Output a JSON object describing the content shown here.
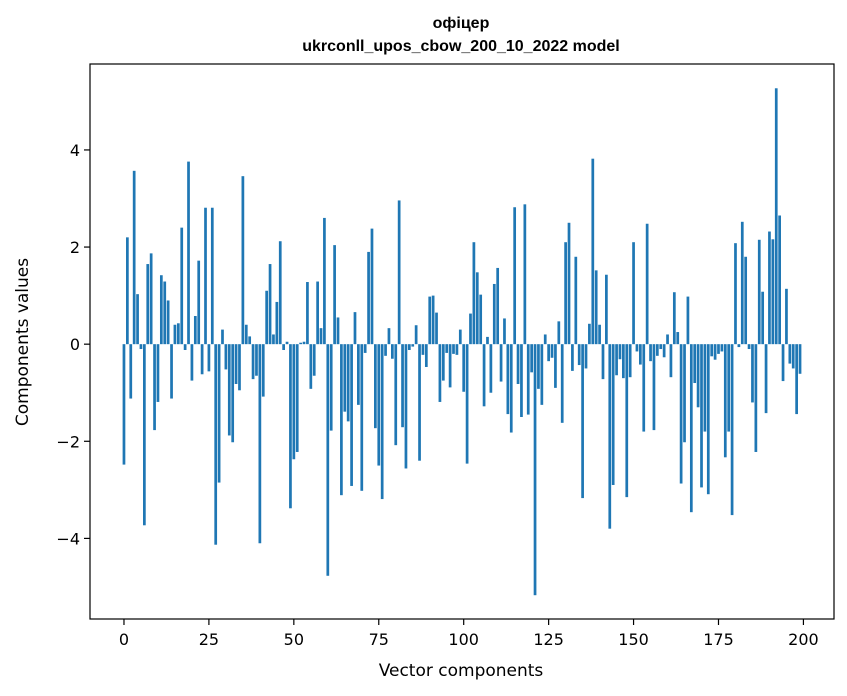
{
  "chart_data": {
    "type": "bar",
    "title_line1": "офіцер",
    "title_line2": "ukrconll_upos_cbow_200_10_2022 model",
    "xlabel": "Vector components",
    "ylabel": "Components values",
    "xlim": [
      -10,
      209
    ],
    "ylim": [
      -5.66,
      5.77
    ],
    "xticks": [
      0,
      25,
      50,
      75,
      100,
      125,
      150,
      175,
      200
    ],
    "yticks": [
      -4,
      -2,
      0,
      2,
      4
    ],
    "bar_color": "#1f77b4",
    "grid": false,
    "x": [
      0,
      1,
      2,
      3,
      4,
      5,
      6,
      7,
      8,
      9,
      10,
      11,
      12,
      13,
      14,
      15,
      16,
      17,
      18,
      19,
      20,
      21,
      22,
      23,
      24,
      25,
      26,
      27,
      28,
      29,
      30,
      31,
      32,
      33,
      34,
      35,
      36,
      37,
      38,
      39,
      40,
      41,
      42,
      43,
      44,
      45,
      46,
      47,
      48,
      49,
      50,
      51,
      52,
      53,
      54,
      55,
      56,
      57,
      58,
      59,
      60,
      61,
      62,
      63,
      64,
      65,
      66,
      67,
      68,
      69,
      70,
      71,
      72,
      73,
      74,
      75,
      76,
      77,
      78,
      79,
      80,
      81,
      82,
      83,
      84,
      85,
      86,
      87,
      88,
      89,
      90,
      91,
      92,
      93,
      94,
      95,
      96,
      97,
      98,
      99,
      100,
      101,
      102,
      103,
      104,
      105,
      106,
      107,
      108,
      109,
      110,
      111,
      112,
      113,
      114,
      115,
      116,
      117,
      118,
      119,
      120,
      121,
      122,
      123,
      124,
      125,
      126,
      127,
      128,
      129,
      130,
      131,
      132,
      133,
      134,
      135,
      136,
      137,
      138,
      139,
      140,
      141,
      142,
      143,
      144,
      145,
      146,
      147,
      148,
      149,
      150,
      151,
      152,
      153,
      154,
      155,
      156,
      157,
      158,
      159,
      160,
      161,
      162,
      163,
      164,
      165,
      166,
      167,
      168,
      169,
      170,
      171,
      172,
      173,
      174,
      175,
      176,
      177,
      178,
      179,
      180,
      181,
      182,
      183,
      184,
      185,
      186,
      187,
      188,
      189,
      190,
      191,
      192,
      193,
      194,
      195,
      196,
      197,
      198,
      199
    ],
    "values": [
      -2.48,
      2.2,
      -1.12,
      3.57,
      1.03,
      -0.1,
      -3.73,
      1.65,
      1.87,
      -1.77,
      -1.19,
      1.42,
      1.29,
      0.9,
      -1.12,
      0.4,
      0.43,
      2.4,
      -0.12,
      3.76,
      -0.75,
      0.58,
      1.72,
      -0.62,
      2.81,
      -0.56,
      2.81,
      -4.13,
      -2.85,
      0.3,
      -0.52,
      -1.88,
      -2.02,
      -0.82,
      -0.95,
      3.46,
      0.4,
      0.16,
      -0.72,
      -0.65,
      -4.1,
      -1.08,
      1.1,
      1.65,
      0.2,
      0.87,
      2.12,
      -0.12,
      0.05,
      -3.38,
      -2.37,
      -2.22,
      0.03,
      0.05,
      1.28,
      -0.92,
      -0.65,
      1.29,
      0.33,
      2.6,
      -4.77,
      -1.78,
      2.04,
      0.55,
      -3.11,
      -1.39,
      -1.59,
      -2.92,
      0.66,
      -1.25,
      -3.02,
      -0.18,
      1.9,
      2.38,
      -1.73,
      -2.5,
      -3.19,
      -0.24,
      0.33,
      -0.3,
      -2.08,
      2.96,
      -1.71,
      -2.56,
      -0.12,
      -0.05,
      0.39,
      -2.4,
      -0.22,
      -0.47,
      0.98,
      1.0,
      0.65,
      -1.19,
      -0.75,
      -0.18,
      -0.89,
      -0.2,
      -0.22,
      0.3,
      -0.98,
      -2.46,
      0.63,
      2.1,
      1.48,
      1.02,
      -1.28,
      0.15,
      -1.0,
      1.24,
      1.57,
      -0.77,
      0.53,
      -1.44,
      -1.82,
      2.82,
      -0.82,
      -1.5,
      2.88,
      -1.45,
      -0.58,
      -5.17,
      -0.92,
      -1.25,
      0.2,
      -0.35,
      -0.28,
      -0.9,
      0.47,
      -1.62,
      2.1,
      2.5,
      -0.55,
      1.8,
      -0.43,
      -3.17,
      -0.5,
      0.42,
      3.82,
      1.52,
      0.4,
      -0.72,
      1.43,
      -3.8,
      -2.9,
      -0.64,
      -0.31,
      -0.7,
      -3.15,
      -0.68,
      2.1,
      -0.15,
      -0.42,
      -1.8,
      2.48,
      -0.35,
      -1.77,
      -0.24,
      -0.1,
      -0.27,
      0.2,
      -0.68,
      1.07,
      0.25,
      -2.87,
      -2.02,
      0.98,
      -3.46,
      -0.8,
      -1.3,
      -2.95,
      -1.8,
      -3.09,
      -0.25,
      -0.32,
      -0.2,
      -0.15,
      -2.33,
      -1.8,
      -3.52,
      2.08,
      -0.06,
      2.52,
      1.8,
      -0.1,
      -1.2,
      -2.22,
      2.15,
      1.08,
      -1.42,
      2.32,
      2.16,
      5.27,
      2.65,
      -0.76,
      1.14,
      -0.4,
      -0.5,
      -1.44,
      -0.61
    ]
  }
}
